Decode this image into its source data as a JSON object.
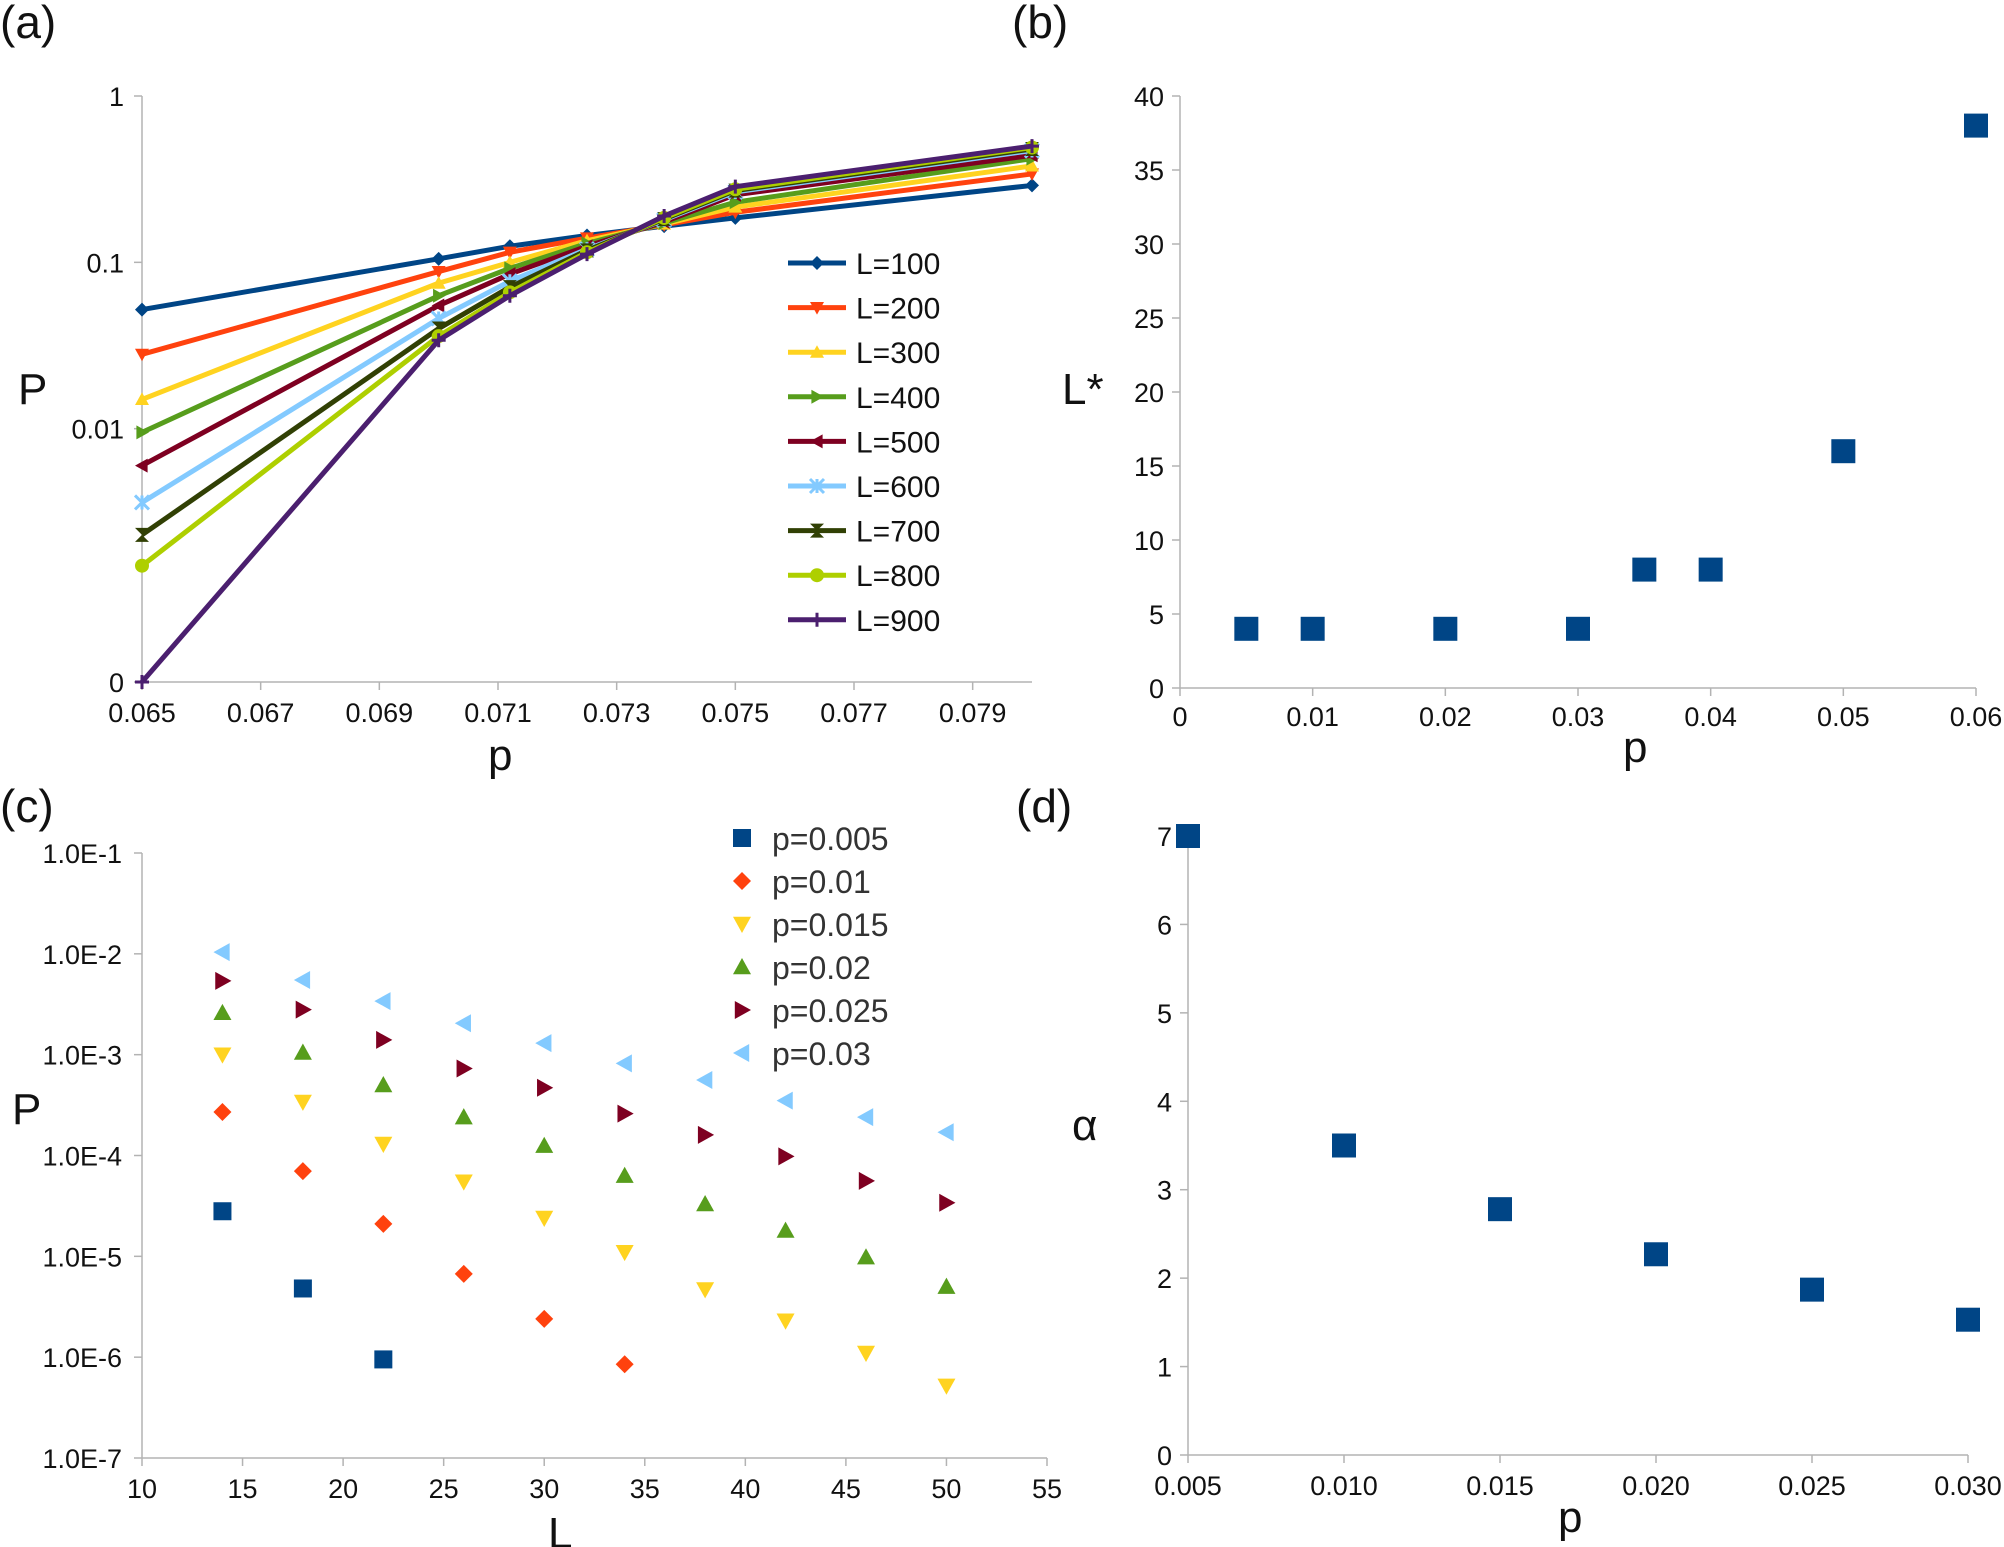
{
  "colors": {
    "L100": "#004586",
    "L200": "#ff420e",
    "L300": "#ffd320",
    "L400": "#579d1c",
    "L500": "#7e0021",
    "L600": "#83caff",
    "L700": "#314004",
    "L800": "#aecf00",
    "L900": "#4b1f6f",
    "marker": "#004586"
  },
  "chart_data": [
    {
      "panel": "(a)",
      "type": "line",
      "xlabel": "p",
      "ylabel": "P",
      "yscale": "log",
      "xlim": [
        0.065,
        0.08
      ],
      "xticks": [
        "0.065",
        "0.067",
        "0.069",
        "0.071",
        "0.073",
        "0.075",
        "0.077",
        "0.079"
      ],
      "yticks": [
        {
          "value": 0.0003,
          "label": "0"
        },
        {
          "value": 0.01,
          "label": "0.01"
        },
        {
          "value": 0.1,
          "label": "0.1"
        },
        {
          "value": 1,
          "label": "1"
        }
      ],
      "ylim": [
        0.0003,
        1
      ],
      "x": [
        0.065,
        0.07,
        0.0712,
        0.0725,
        0.0738,
        0.075,
        0.08
      ],
      "series": [
        {
          "name": "L=100",
          "marker": "diamond",
          "color_key": "L100",
          "values": [
            0.052,
            0.105,
            0.125,
            0.145,
            0.165,
            0.185,
            0.29
          ]
        },
        {
          "name": "L=200",
          "marker": "tri_down",
          "color_key": "L200",
          "values": [
            0.028,
            0.088,
            0.115,
            0.14,
            0.168,
            0.2,
            0.34
          ]
        },
        {
          "name": "L=300",
          "marker": "tri_up",
          "color_key": "L300",
          "values": [
            0.015,
            0.075,
            0.1,
            0.135,
            0.17,
            0.215,
            0.38
          ]
        },
        {
          "name": "L=400",
          "marker": "tri_right",
          "color_key": "L400",
          "values": [
            0.0095,
            0.063,
            0.092,
            0.13,
            0.172,
            0.23,
            0.42
          ]
        },
        {
          "name": "L=500",
          "marker": "tri_left",
          "color_key": "L500",
          "values": [
            0.006,
            0.055,
            0.085,
            0.125,
            0.175,
            0.255,
            0.44
          ]
        },
        {
          "name": "L=600",
          "marker": "star",
          "color_key": "L600",
          "values": [
            0.0036,
            0.046,
            0.077,
            0.12,
            0.18,
            0.265,
            0.47
          ]
        },
        {
          "name": "L=700",
          "marker": "hourglass",
          "color_key": "L700",
          "values": [
            0.0023,
            0.04,
            0.071,
            0.118,
            0.182,
            0.27,
            0.48
          ]
        },
        {
          "name": "L=800",
          "marker": "circle",
          "color_key": "L800",
          "values": [
            0.0015,
            0.036,
            0.066,
            0.115,
            0.185,
            0.275,
            0.49
          ]
        },
        {
          "name": "L=900",
          "marker": "plus",
          "color_key": "L900",
          "values": [
            0.0003,
            0.034,
            0.063,
            0.112,
            0.19,
            0.285,
            0.5
          ]
        }
      ]
    },
    {
      "panel": "(b)",
      "type": "scatter",
      "xlabel": "p",
      "ylabel": "L*",
      "xlim": [
        0,
        0.06
      ],
      "ylim": [
        0,
        40
      ],
      "xticks": [
        "0",
        "0.01",
        "0.02",
        "0.03",
        "0.04",
        "0.05",
        "0.06"
      ],
      "yticks": [
        "0",
        "5",
        "10",
        "15",
        "20",
        "25",
        "30",
        "35",
        "40"
      ],
      "points": [
        {
          "x": 0.005,
          "y": 4
        },
        {
          "x": 0.01,
          "y": 4
        },
        {
          "x": 0.02,
          "y": 4
        },
        {
          "x": 0.03,
          "y": 4
        },
        {
          "x": 0.035,
          "y": 8
        },
        {
          "x": 0.04,
          "y": 8
        },
        {
          "x": 0.05,
          "y": 16
        },
        {
          "x": 0.06,
          "y": 38
        }
      ]
    },
    {
      "panel": "(c)",
      "type": "scatter",
      "xlabel": "L",
      "ylabel": "P",
      "yscale": "log",
      "xlim": [
        10,
        55
      ],
      "ylim": [
        1e-07,
        0.1
      ],
      "xticks": [
        "10",
        "15",
        "20",
        "25",
        "30",
        "35",
        "40",
        "45",
        "50",
        "55"
      ],
      "yticks": [
        "1.0E-7",
        "1.0E-6",
        "1.0E-5",
        "1.0E-4",
        "1.0E-3",
        "1.0E-2",
        "1.0E-1"
      ],
      "series": [
        {
          "name": "p=0.005",
          "marker": "square",
          "color_key": "L100",
          "x": [
            14,
            18,
            22
          ],
          "values": [
            2.8e-05,
            4.8e-06,
            9.5e-07
          ]
        },
        {
          "name": "p=0.01",
          "marker": "diamond",
          "color_key": "L200",
          "x": [
            14,
            18,
            22,
            26,
            30,
            34
          ],
          "values": [
            0.00027,
            7e-05,
            2.1e-05,
            6.7e-06,
            2.4e-06,
            8.5e-07
          ]
        },
        {
          "name": "p=0.015",
          "marker": "tri_down",
          "color_key": "L300",
          "x": [
            14,
            18,
            22,
            26,
            30,
            34,
            38,
            42,
            46,
            50
          ],
          "values": [
            0.001,
            0.00034,
            0.00013,
            5.5e-05,
            2.4e-05,
            1.1e-05,
            4.7e-06,
            2.3e-06,
            1.1e-06,
            5.2e-07
          ]
        },
        {
          "name": "p=0.02",
          "marker": "tri_up",
          "color_key": "L400",
          "x": [
            14,
            18,
            22,
            26,
            30,
            34,
            38,
            42,
            46,
            50
          ],
          "values": [
            0.0026,
            0.00105,
            0.0005,
            0.00024,
            0.000125,
            6.3e-05,
            3.3e-05,
            1.8e-05,
            9.8e-06,
            5e-06
          ]
        },
        {
          "name": "p=0.025",
          "marker": "tri_right",
          "color_key": "L500",
          "x": [
            14,
            18,
            22,
            26,
            30,
            34,
            38,
            42,
            46,
            50
          ],
          "values": [
            0.0054,
            0.0028,
            0.0014,
            0.00073,
            0.00047,
            0.00026,
            0.00016,
            9.8e-05,
            5.6e-05,
            3.4e-05
          ]
        },
        {
          "name": "p=0.03",
          "marker": "tri_left",
          "color_key": "L600",
          "x": [
            14,
            18,
            22,
            26,
            30,
            34,
            38,
            42,
            46,
            50
          ],
          "values": [
            0.0104,
            0.0055,
            0.0034,
            0.00205,
            0.0013,
            0.00082,
            0.00056,
            0.00035,
            0.00024,
            0.00017
          ]
        }
      ]
    },
    {
      "panel": "(d)",
      "type": "scatter",
      "xlabel": "p",
      "ylabel": "α",
      "xlim": [
        0.005,
        0.03
      ],
      "ylim": [
        0,
        7
      ],
      "xticks": [
        "0.005",
        "0.010",
        "0.015",
        "0.020",
        "0.025",
        "0.030"
      ],
      "yticks": [
        "0",
        "1",
        "2",
        "3",
        "4",
        "5",
        "6",
        "7"
      ],
      "points": [
        {
          "x": 0.005,
          "y": 7.0
        },
        {
          "x": 0.01,
          "y": 3.5
        },
        {
          "x": 0.015,
          "y": 2.78
        },
        {
          "x": 0.02,
          "y": 2.27
        },
        {
          "x": 0.025,
          "y": 1.87
        },
        {
          "x": 0.03,
          "y": 1.53
        }
      ]
    }
  ]
}
